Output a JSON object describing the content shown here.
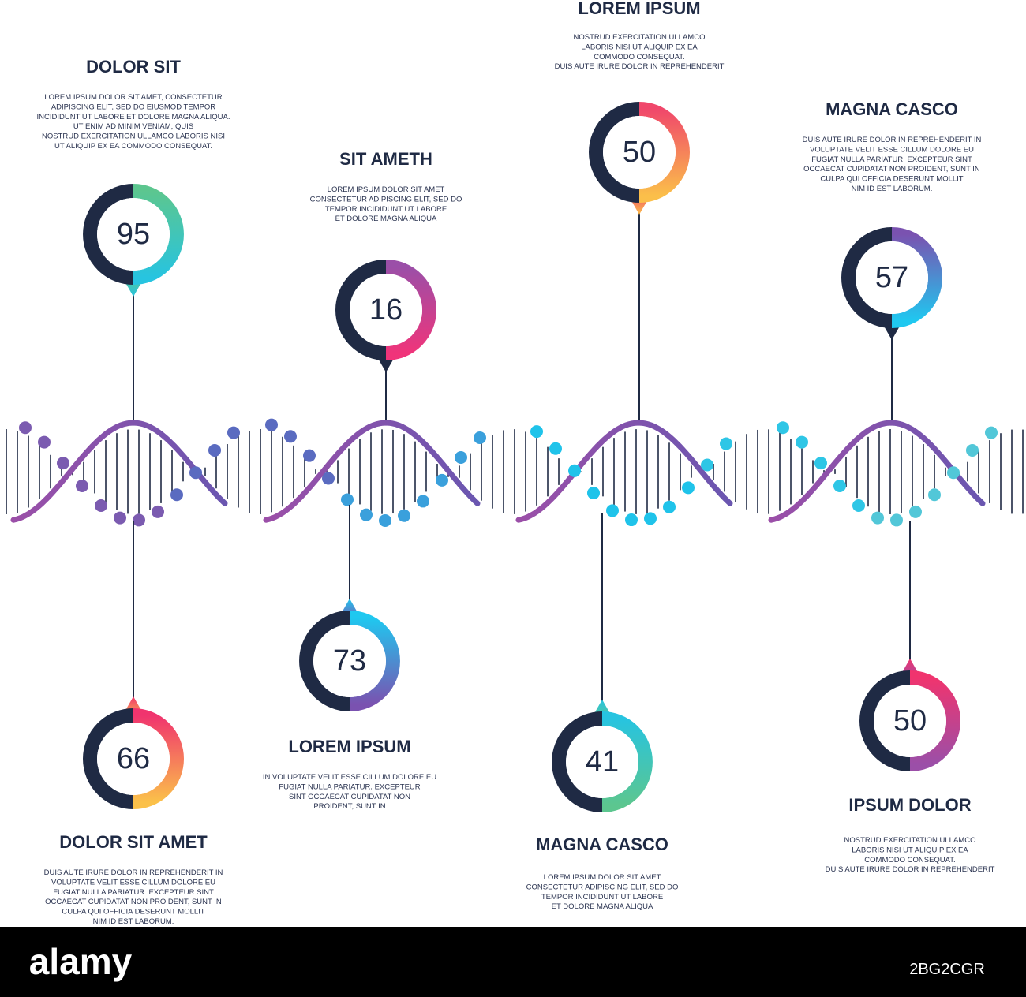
{
  "items": [
    {
      "title": "DOLOR SIT",
      "value": "95",
      "text": [
        "LOREM IPSUM DOLOR SIT AMET, CONSECTETUR",
        "ADIPISCING ELIT, SED DO EIUSMOD TEMPOR",
        "INCIDIDUNT UT LABORE ET DOLORE MAGNA ALIQUA.",
        "UT ENIM AD MINIM VENIAM, QUIS",
        "NOSTRUD EXERCITATION ULLAMCO LABORIS NISI",
        "UT ALIQUIP EX EA COMMODO CONSEQUAT."
      ]
    },
    {
      "title": "SIT AMETH",
      "value": "16",
      "text": [
        "LOREM IPSUM DOLOR SIT AMET",
        "CONSECTETUR ADIPISCING ELIT, SED DO",
        "TEMPOR INCIDIDUNT UT LABORE",
        "ET DOLORE MAGNA ALIQUA"
      ]
    },
    {
      "title": "LOREM IPSUM",
      "value": "50",
      "text": [
        "NOSTRUD EXERCITATION ULLAMCO",
        "LABORIS NISI UT ALIQUIP EX EA",
        "COMMODO CONSEQUAT.",
        "DUIS AUTE IRURE DOLOR IN REPREHENDERIT"
      ]
    },
    {
      "title": "MAGNA CASCO",
      "value": "57",
      "text": [
        "DUIS AUTE IRURE DOLOR IN REPREHENDERIT IN",
        "VOLUPTATE VELIT ESSE CILLUM DOLORE EU",
        "FUGIAT NULLA PARIATUR. EXCEPTEUR SINT",
        "OCCAECAT CUPIDATAT NON PROIDENT, SUNT IN",
        "CULPA QUI OFFICIA DESERUNT MOLLIT",
        "NIM ID EST LABORUM."
      ]
    },
    {
      "title": "DOLOR SIT AMET",
      "value": "66",
      "text": [
        "DUIS AUTE IRURE DOLOR IN REPREHENDERIT IN",
        "VOLUPTATE VELIT ESSE CILLUM DOLORE EU",
        "FUGIAT NULLA PARIATUR. EXCEPTEUR SINT",
        "OCCAECAT CUPIDATAT NON PROIDENT, SUNT IN",
        "CULPA QUI OFFICIA DESERUNT MOLLIT",
        "NIM ID EST LABORUM."
      ]
    },
    {
      "title": "LOREM IPSUM",
      "value": "73",
      "text": [
        "IN VOLUPTATE VELIT ESSE CILLUM DOLORE EU",
        "FUGIAT NULLA PARIATUR. EXCEPTEUR",
        "SINT OCCAECAT CUPIDATAT NON",
        "PROIDENT, SUNT IN"
      ]
    },
    {
      "title": "MAGNA CASCO",
      "value": "41",
      "text": [
        "LOREM IPSUM DOLOR SIT AMET",
        "CONSECTETUR ADIPISCING ELIT, SED DO",
        "TEMPOR INCIDIDUNT UT LABORE",
        "ET DOLORE MAGNA ALIQUA"
      ]
    },
    {
      "title": "IPSUM DOLOR",
      "value": "50",
      "text": [
        "NOSTRUD EXERCITATION ULLAMCO",
        "LABORIS NISI UT ALIQUIP EX EA",
        "COMMODO CONSEQUAT.",
        "DUIS AUTE IRURE DOLOR IN REPREHENDERIT"
      ]
    }
  ],
  "footer": {
    "logo": "alamy",
    "image_id": "2BG2CGR"
  }
}
